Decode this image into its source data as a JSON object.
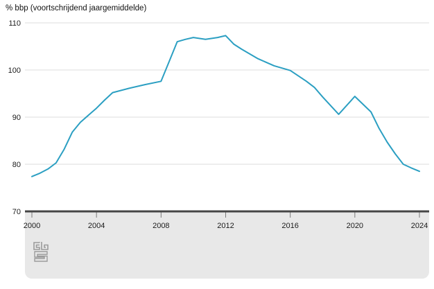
{
  "title": "% bbp (voortschrijdend jaargemiddelde)",
  "chart_data": {
    "type": "line",
    "title": "% bbp (voortschrijdend jaargemiddelde)",
    "xlabel": "",
    "ylabel": "% bbp",
    "xlim": [
      2000,
      2024
    ],
    "ylim": [
      70,
      110
    ],
    "grid": true,
    "x_tick_labels": [
      "2000",
      "2004",
      "2008",
      "2012",
      "2016",
      "2020",
      "2024"
    ],
    "x_tick_values": [
      2000,
      2004,
      2008,
      2012,
      2016,
      2020,
      2024
    ],
    "y_tick_labels": [
      "70",
      "80",
      "90",
      "100",
      "110"
    ],
    "y_tick_values": [
      70,
      80,
      90,
      100,
      110
    ],
    "series": [
      {
        "name": "% bbp (voortschrijdend jaargemiddelde)",
        "x": [
          2000,
          2000.5,
          2001,
          2001.5,
          2002,
          2002.5,
          2003,
          2003.5,
          2004,
          2004.5,
          2005,
          2006,
          2007,
          2008,
          2008.5,
          2009,
          2009.5,
          2010,
          2010.75,
          2011.5,
          2012,
          2012.5,
          2013,
          2014,
          2015,
          2016,
          2017,
          2017.5,
          2018,
          2019,
          2020,
          2021,
          2021.5,
          2022,
          2022.5,
          2023,
          2023.5,
          2024
        ],
        "values": [
          77.4,
          78.1,
          79.0,
          80.3,
          83.2,
          86.8,
          88.9,
          90.4,
          91.9,
          93.6,
          95.2,
          96.1,
          96.9,
          97.6,
          101.8,
          106.0,
          106.5,
          106.9,
          106.5,
          106.9,
          107.3,
          105.5,
          104.4,
          102.4,
          100.9,
          99.9,
          97.6,
          96.3,
          94.3,
          90.6,
          94.4,
          91.1,
          87.6,
          84.7,
          82.2,
          80.0,
          79.2,
          78.5
        ]
      }
    ]
  },
  "colors": {
    "line": "#2b9fc2",
    "gridline": "#dedede",
    "axis": "#454545",
    "tick": "#7a7a7a",
    "footer_bg": "#e8e8e8",
    "text": "#1a1a1a",
    "logo": "#9b9b9b"
  },
  "logo": {
    "name": "CBS"
  }
}
